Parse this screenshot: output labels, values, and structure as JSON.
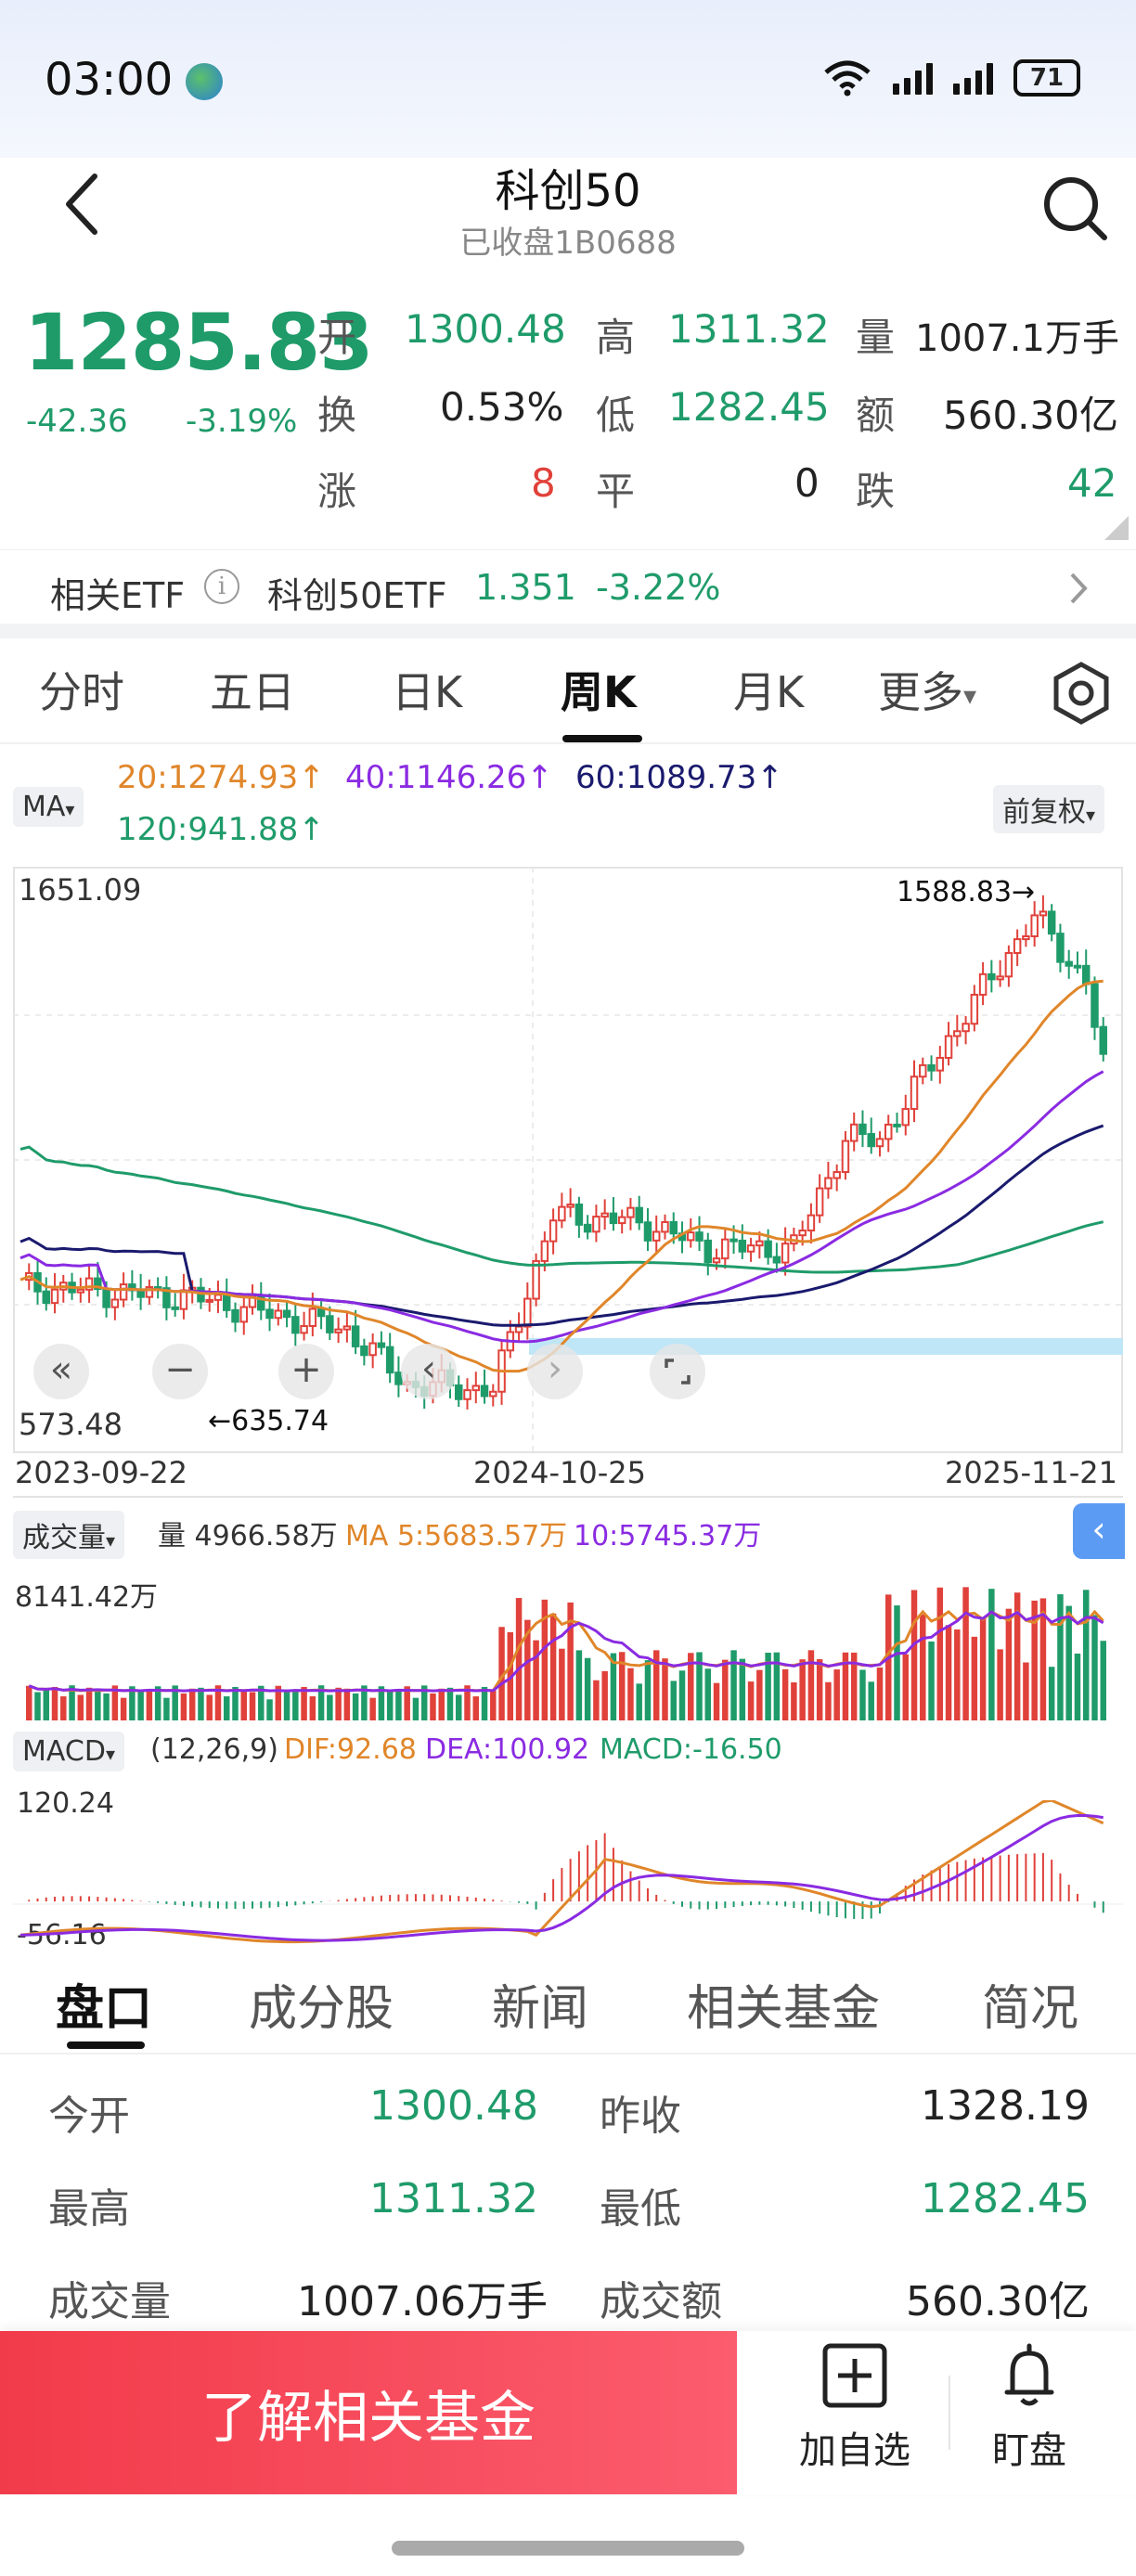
{
  "status_bar": {
    "time": "03:00",
    "battery": "71"
  },
  "header": {
    "title": "科创50",
    "subtitle": "已收盘1B0688"
  },
  "quote": {
    "price": "1285.83",
    "change": "-42.36",
    "change_pct": "-3.19%",
    "open_label": "开",
    "open": "1300.48",
    "high_label": "高",
    "high": "1311.32",
    "vol_label": "量",
    "volume": "1007.1万手",
    "turnover_label": "换",
    "turnover": "0.53%",
    "low_label": "低",
    "low": "1282.45",
    "amount_label": "额",
    "amount": "560.30亿",
    "up_label": "涨",
    "up": "8",
    "flat_label": "平",
    "flat": "0",
    "down_label": "跌",
    "down": "42"
  },
  "etf": {
    "label": "相关ETF",
    "name": "科创50ETF",
    "price": "1.351",
    "change": "-3.22%"
  },
  "chart_tabs": [
    "分时",
    "五日",
    "日K",
    "周K",
    "月K",
    "更多"
  ],
  "ma_bar": {
    "selector": "MA",
    "ma20": "20:1274.93↑",
    "ma40": "40:1146.26↑",
    "ma60": "60:1089.73↑",
    "ma120": "120:941.88↑",
    "adjust": "前复权"
  },
  "main_chart": {
    "y_top": "1651.09",
    "y_bottom": "573.48",
    "high_mark": "1588.83→",
    "low_mark": "←635.74",
    "x_labels": [
      "2023-09-22",
      "2024-10-25",
      "2025-11-21"
    ]
  },
  "volume_bar": {
    "selector": "成交量",
    "vol": "量 4966.58万",
    "ma5": "MA 5:5683.57万",
    "ma10": "10:5745.37万",
    "y_top": "8141.42万"
  },
  "macd_bar": {
    "selector": "MACD",
    "params": "(12,26,9)",
    "dif": "DIF:92.68",
    "dea": "DEA:100.92",
    "macd": "MACD:-16.50",
    "y_top": "120.24",
    "y_bottom": "-56.16"
  },
  "bottom_tabs": [
    "盘口",
    "成分股",
    "新闻",
    "相关基金",
    "简况"
  ],
  "details": {
    "open_label": "今开",
    "open": "1300.48",
    "prev_label": "昨收",
    "prev": "1328.19",
    "high_label": "最高",
    "high": "1311.32",
    "low_label": "最低",
    "low": "1282.45",
    "vol_label": "成交量",
    "vol": "1007.06万手",
    "amount_label": "成交额",
    "amount": "560.30亿"
  },
  "actions": {
    "learn": "了解相关基金",
    "add": "加自选",
    "watch": "盯盘"
  },
  "colors": {
    "up": "#e0413a",
    "down": "#1f9b6a",
    "ma20": "#e0862a",
    "ma40": "#8a2be2",
    "ma60": "#1a1a6e",
    "ma120": "#1f9b6a"
  },
  "chart_data": {
    "type": "candlestick",
    "interval": "weekly",
    "ylim": [
      573.48,
      1651.09
    ],
    "x_labels": [
      "2023-09-22",
      "2024-10-25",
      "2025-11-21"
    ],
    "high": 1588.83,
    "low": 635.74,
    "last_close": 1285.83,
    "ma": {
      "ma20": 1274.93,
      "ma40": 1146.26,
      "ma60": 1089.73,
      "ma120": 941.88
    },
    "volume": {
      "last": 4966.58,
      "ma5": 5683.57,
      "ma10": 5745.37,
      "ymax": 8141.42,
      "unit": "万"
    },
    "macd": {
      "dif": 92.68,
      "dea": 100.92,
      "macd": -16.5,
      "ylim": [
        -56.16,
        120.24
      ]
    }
  }
}
